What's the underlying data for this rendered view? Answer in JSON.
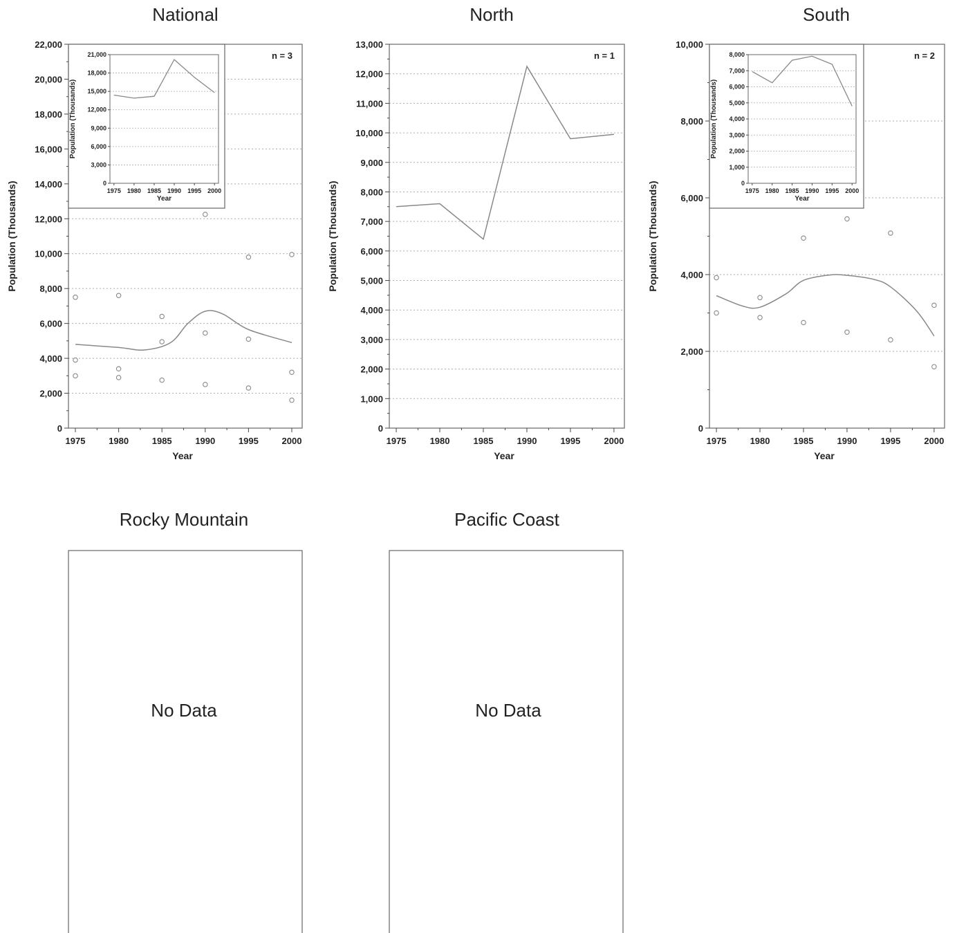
{
  "chart_data": [
    {
      "type": "scatter",
      "title": "National",
      "xlabel": "Year",
      "ylabel": "Population (Thousands)",
      "annotation": "n = 3",
      "xticks": [
        "1975",
        "1980",
        "1985",
        "1990",
        "1995",
        "2000"
      ],
      "yticks": [
        "0",
        "2,000",
        "4,000",
        "6,000",
        "8,000",
        "10,000",
        "12,000",
        "14,000",
        "16,000",
        "18,000",
        "20,000",
        "22,000"
      ],
      "xlim": [
        1974.2,
        2001.2
      ],
      "ylim": [
        0,
        22000
      ],
      "grid": true,
      "points": [
        {
          "x": 1975,
          "y": 7500
        },
        {
          "x": 1975,
          "y": 3900
        },
        {
          "x": 1975,
          "y": 3000
        },
        {
          "x": 1980,
          "y": 7600
        },
        {
          "x": 1980,
          "y": 3400
        },
        {
          "x": 1980,
          "y": 2900
        },
        {
          "x": 1985,
          "y": 6400
        },
        {
          "x": 1985,
          "y": 4950
        },
        {
          "x": 1985,
          "y": 2750
        },
        {
          "x": 1990,
          "y": 12250
        },
        {
          "x": 1990,
          "y": 5450
        },
        {
          "x": 1990,
          "y": 2500
        },
        {
          "x": 1995,
          "y": 9800
        },
        {
          "x": 1995,
          "y": 5100
        },
        {
          "x": 1995,
          "y": 2300
        },
        {
          "x": 2000,
          "y": 9950
        },
        {
          "x": 2000,
          "y": 3200
        },
        {
          "x": 2000,
          "y": 1600
        }
      ],
      "smooth": [
        {
          "x": 1975,
          "y": 4800
        },
        {
          "x": 1980,
          "y": 4620
        },
        {
          "x": 1983,
          "y": 4480
        },
        {
          "x": 1986,
          "y": 4900
        },
        {
          "x": 1988,
          "y": 6000
        },
        {
          "x": 1990,
          "y": 6700
        },
        {
          "x": 1992,
          "y": 6550
        },
        {
          "x": 1995,
          "y": 5650
        },
        {
          "x": 2000,
          "y": 4900
        }
      ],
      "inset": {
        "xlabel": "Year",
        "ylabel": "Population (Thousands)",
        "xticks": [
          "1975",
          "1980",
          "1985",
          "1990",
          "1995",
          "2000"
        ],
        "yticks": [
          "0",
          "3,000",
          "6,000",
          "9,000",
          "12,000",
          "15,000",
          "18,000",
          "21,000"
        ],
        "xlim": [
          1974,
          2001
        ],
        "ylim": [
          0,
          21000
        ],
        "line": [
          {
            "x": 1975,
            "y": 14400
          },
          {
            "x": 1980,
            "y": 13900
          },
          {
            "x": 1985,
            "y": 14200
          },
          {
            "x": 1990,
            "y": 20200
          },
          {
            "x": 1995,
            "y": 17300
          },
          {
            "x": 2000,
            "y": 14800
          }
        ]
      }
    },
    {
      "type": "line",
      "title": "North",
      "xlabel": "Year",
      "ylabel": "Population (Thousands)",
      "annotation": "n = 1",
      "xticks": [
        "1975",
        "1980",
        "1985",
        "1990",
        "1995",
        "2000"
      ],
      "yticks": [
        "0",
        "1,000",
        "2,000",
        "3,000",
        "4,000",
        "5,000",
        "6,000",
        "7,000",
        "8,000",
        "9,000",
        "10,000",
        "11,000",
        "12,000",
        "13,000"
      ],
      "xlim": [
        1974.2,
        2001.2
      ],
      "ylim": [
        0,
        13000
      ],
      "grid": true,
      "line": [
        {
          "x": 1975,
          "y": 7500
        },
        {
          "x": 1980,
          "y": 7600
        },
        {
          "x": 1985,
          "y": 6400
        },
        {
          "x": 1990,
          "y": 12250
        },
        {
          "x": 1995,
          "y": 9800
        },
        {
          "x": 2000,
          "y": 9950
        }
      ]
    },
    {
      "type": "scatter",
      "title": "South",
      "xlabel": "Year",
      "ylabel": "Population (Thousands)",
      "annotation": "n = 2",
      "xticks": [
        "1975",
        "1980",
        "1985",
        "1990",
        "1995",
        "2000"
      ],
      "yticks": [
        "0",
        "2,000",
        "4,000",
        "6,000",
        "8,000",
        "10,000"
      ],
      "xlim": [
        1974.2,
        2001.2
      ],
      "ylim": [
        0,
        10000
      ],
      "grid": true,
      "points": [
        {
          "x": 1975,
          "y": 3920
        },
        {
          "x": 1975,
          "y": 3000
        },
        {
          "x": 1980,
          "y": 3400
        },
        {
          "x": 1980,
          "y": 2880
        },
        {
          "x": 1985,
          "y": 4950
        },
        {
          "x": 1985,
          "y": 2750
        },
        {
          "x": 1990,
          "y": 5450
        },
        {
          "x": 1990,
          "y": 2500
        },
        {
          "x": 1995,
          "y": 5080
        },
        {
          "x": 1995,
          "y": 2300
        },
        {
          "x": 2000,
          "y": 3200
        },
        {
          "x": 2000,
          "y": 1600
        }
      ],
      "smooth": [
        {
          "x": 1975,
          "y": 3450
        },
        {
          "x": 1978,
          "y": 3180
        },
        {
          "x": 1980,
          "y": 3150
        },
        {
          "x": 1983,
          "y": 3500
        },
        {
          "x": 1985,
          "y": 3850
        },
        {
          "x": 1988,
          "y": 3990
        },
        {
          "x": 1990,
          "y": 3980
        },
        {
          "x": 1993,
          "y": 3880
        },
        {
          "x": 1995,
          "y": 3680
        },
        {
          "x": 1998,
          "y": 3050
        },
        {
          "x": 2000,
          "y": 2400
        }
      ],
      "inset": {
        "xlabel": "Year",
        "ylabel": "Population (Thousands)",
        "xticks": [
          "1975",
          "1980",
          "1985",
          "1990",
          "1995",
          "2000"
        ],
        "yticks": [
          "0",
          "1,000",
          "2,000",
          "3,000",
          "4,000",
          "5,000",
          "6,000",
          "7,000",
          "8,000"
        ],
        "xlim": [
          1974,
          2001
        ],
        "ylim": [
          0,
          8000
        ],
        "line": [
          {
            "x": 1975,
            "y": 6950
          },
          {
            "x": 1980,
            "y": 6250
          },
          {
            "x": 1985,
            "y": 7650
          },
          {
            "x": 1990,
            "y": 7900
          },
          {
            "x": 1995,
            "y": 7400
          },
          {
            "x": 2000,
            "y": 4800
          }
        ]
      }
    },
    {
      "type": "table",
      "title": "Rocky Mountain",
      "message": "No Data"
    },
    {
      "type": "table",
      "title": "Pacific Coast",
      "message": "No Data"
    }
  ]
}
